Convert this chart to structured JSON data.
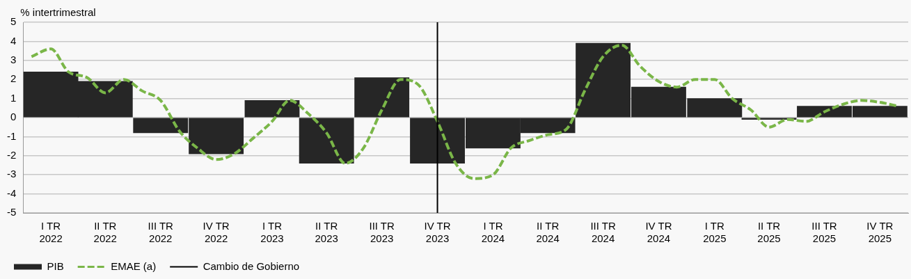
{
  "chart_data": {
    "type": "bar",
    "ylabel": "% intertrimestral",
    "x": [
      "2022-02-15",
      "2022-05-15",
      "2022-08-15",
      "2022-11-15",
      "2023-02-15",
      "2023-05-15",
      "2023-08-15",
      "2023-11-15",
      "2024-02-15",
      "2024-05-15",
      "2024-08-15",
      "2024-11-15",
      "2025-02-15",
      "2025-05-15",
      "2025-08-15",
      "2025-11-15"
    ],
    "series": [
      {
        "name": "PIB",
        "color": "#262626",
        "values": [
          2.4,
          1.9,
          -0.8,
          -1.9,
          0.9,
          -2.4,
          2.1,
          -2.4,
          -1.6,
          -0.8,
          3.9,
          1.6,
          1.0,
          -0.1,
          0.6,
          0.6
        ]
      },
      {
        "name": "EMAE (a)",
        "type": "line",
        "color": "#7ab648",
        "line_style": "dashed",
        "x": [
          "2022-01-15",
          "2022-02-15",
          "2022-03-15",
          "2022-04-15",
          "2022-05-15",
          "2022-06-15",
          "2022-07-15",
          "2022-08-15",
          "2022-09-15",
          "2022-10-15",
          "2022-11-15",
          "2022-12-15",
          "2023-01-15",
          "2023-02-15",
          "2023-03-15",
          "2023-04-15",
          "2023-05-15",
          "2023-06-15",
          "2023-07-15",
          "2023-08-15",
          "2023-09-15",
          "2023-10-15",
          "2023-11-15",
          "2023-12-15",
          "2024-01-15",
          "2024-02-15",
          "2024-03-15",
          "2024-04-15",
          "2024-05-15",
          "2024-06-15",
          "2024-07-15",
          "2024-08-15",
          "2024-09-15",
          "2024-10-15",
          "2024-11-15",
          "2024-12-15",
          "2025-01-15",
          "2025-02-15",
          "2025-03-15",
          "2025-04-15",
          "2025-05-15",
          "2025-06-15",
          "2025-07-15",
          "2025-08-15",
          "2025-09-15",
          "2025-10-15",
          "2025-11-15",
          "2025-12-15"
        ],
        "values": [
          3.2,
          3.6,
          2.4,
          2.1,
          1.3,
          2.0,
          1.4,
          0.9,
          -0.7,
          -1.6,
          -2.2,
          -1.9,
          -1.1,
          -0.2,
          0.9,
          0.2,
          -0.8,
          -2.4,
          -1.6,
          0.4,
          2.0,
          1.7,
          -0.2,
          -2.4,
          -3.2,
          -3.0,
          -1.6,
          -1.2,
          -0.9,
          -0.6,
          1.4,
          3.2,
          3.8,
          2.7,
          1.9,
          1.6,
          2.0,
          2.0,
          1.0,
          0.4,
          -0.5,
          -0.1,
          -0.2,
          0.3,
          0.7,
          0.9,
          0.8,
          0.6
        ]
      }
    ],
    "xlim": [
      "2022-01-01",
      "2026-01-01"
    ],
    "xticks": [
      {
        "value": "2022-02-15",
        "label": "I TR 2022"
      },
      {
        "value": "2022-05-15",
        "label": "II TR 2022"
      },
      {
        "value": "2022-08-15",
        "label": "III TR 2022"
      },
      {
        "value": "2022-11-15",
        "label": "IV TR 2022"
      },
      {
        "value": "2023-02-15",
        "label": "I TR 2023"
      },
      {
        "value": "2023-05-15",
        "label": "II TR 2023"
      },
      {
        "value": "2023-08-15",
        "label": "III TR 2023"
      },
      {
        "value": "2023-11-15",
        "label": "IV TR 2023"
      },
      {
        "value": "2024-02-15",
        "label": "I TR 2024"
      },
      {
        "value": "2024-05-15",
        "label": "II TR 2024"
      },
      {
        "value": "2024-08-15",
        "label": "III TR 2024"
      },
      {
        "value": "2024-11-15",
        "label": "IV TR 2024"
      },
      {
        "value": "2025-02-15",
        "label": "I TR 2025"
      },
      {
        "value": "2025-05-15",
        "label": "II TR 2025"
      },
      {
        "value": "2025-08-15",
        "label": "III TR 2025"
      },
      {
        "value": "2025-11-15",
        "label": "IV TR 2025"
      }
    ],
    "ylim": [
      -5,
      5
    ],
    "yticks": [
      -5,
      -4,
      -3,
      -2,
      -1,
      0,
      1,
      2,
      3,
      4,
      5
    ],
    "grid": "y",
    "legend": "bottom left",
    "marker": "none",
    "ref_lines": [
      {
        "axis": "x",
        "value": "2023-11-15",
        "label": "Cambio de Gobierno",
        "color": "#000000",
        "line_style": "solid"
      }
    ]
  }
}
